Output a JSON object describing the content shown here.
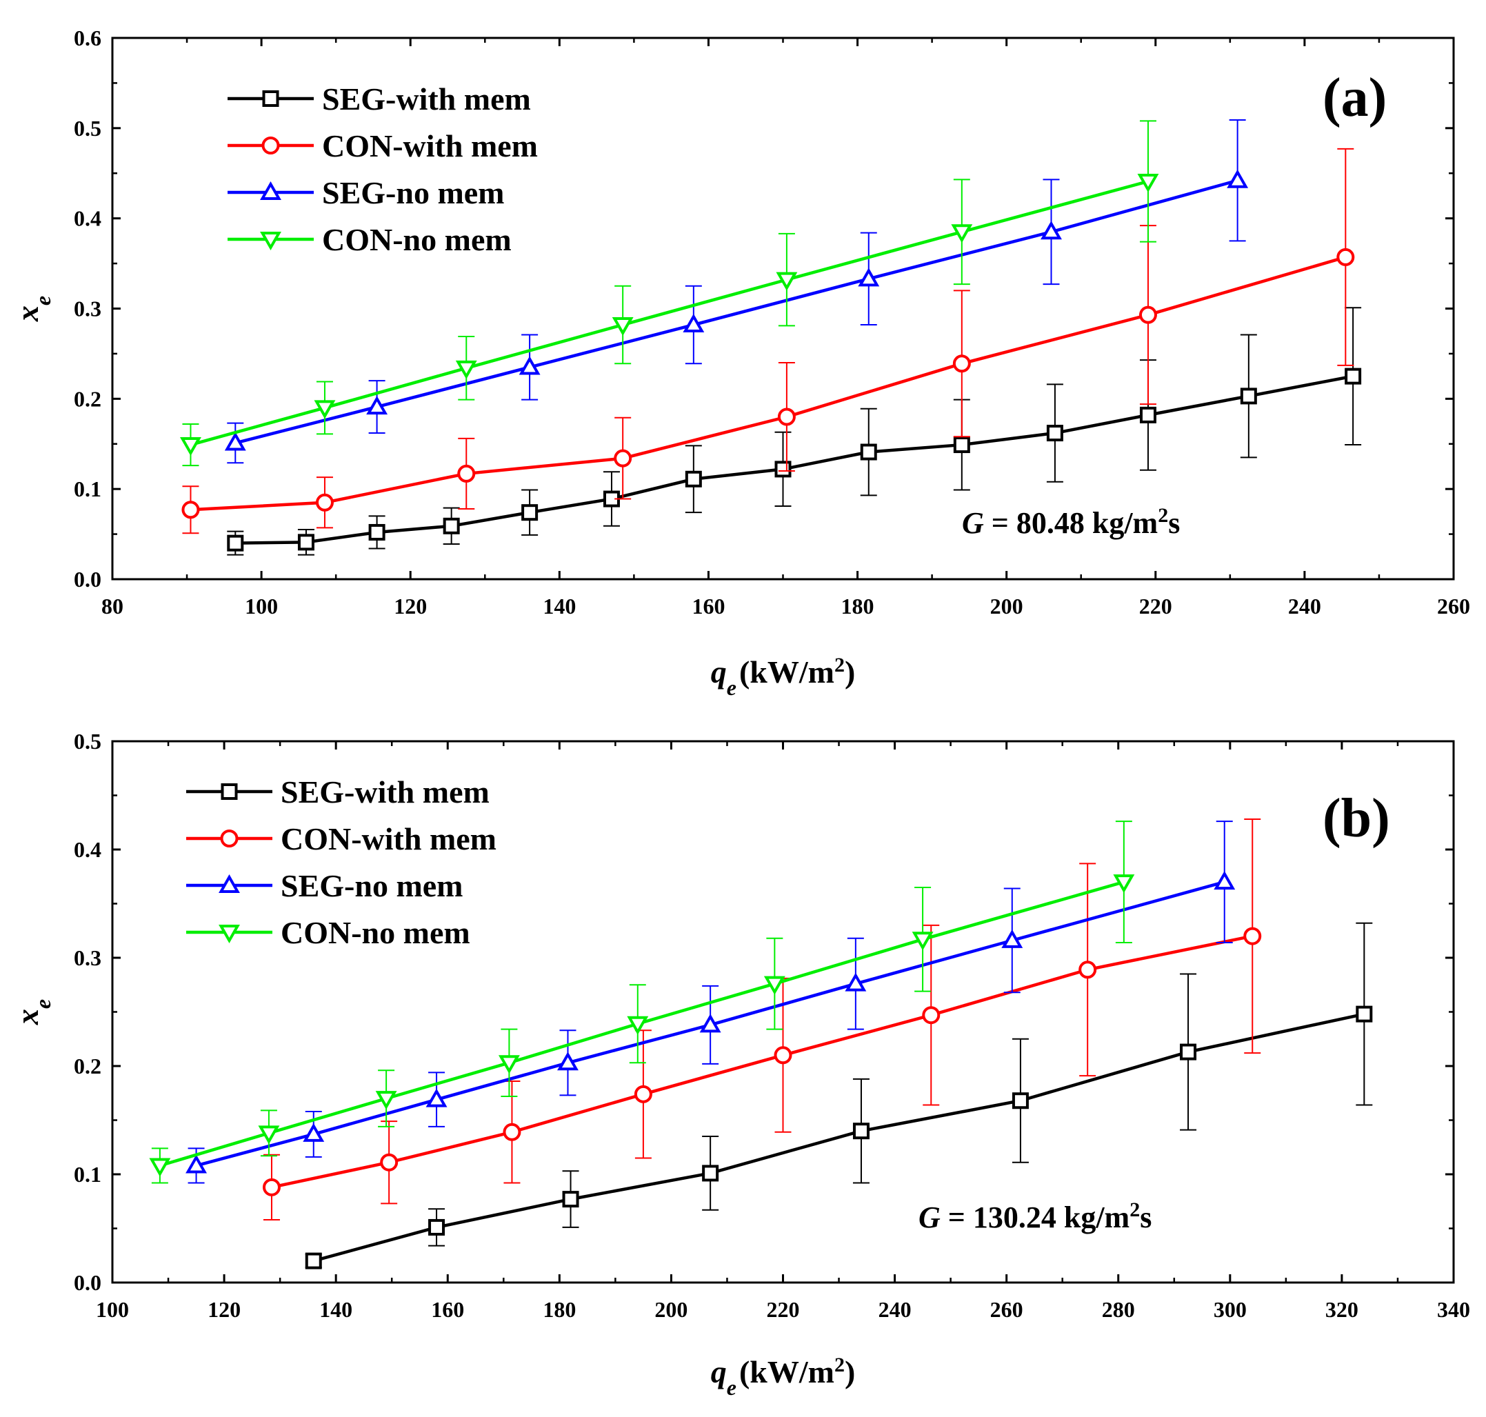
{
  "chart_data": [
    {
      "type": "line",
      "panel_label": "(a)",
      "xlabel": {
        "var": "q",
        "sub": "e",
        "unit": "(kW/m",
        "sup": "2",
        "close": ")"
      },
      "ylabel": {
        "var": "x",
        "sub": "e"
      },
      "xlim": [
        80,
        260
      ],
      "ylim": [
        0.0,
        0.6
      ],
      "xticks": [
        "80",
        "100",
        "120",
        "140",
        "160",
        "180",
        "200",
        "220",
        "240",
        "260"
      ],
      "yticks": [
        "0.0",
        "0.1",
        "0.2",
        "0.3",
        "0.4",
        "0.5",
        "0.6"
      ],
      "annotation": {
        "var": "G",
        "eq": " = 80.48 kg/m",
        "sup": "2",
        "tail": "s"
      },
      "legend_position": "top-left",
      "series": [
        {
          "name": "SEG-with mem",
          "color": "#000000",
          "marker": "square",
          "x": [
            96.5,
            106,
            115.5,
            125.5,
            136,
            147,
            158,
            170,
            181.5,
            194,
            206.5,
            219,
            232.5,
            246.5
          ],
          "y": [
            0.04,
            0.041,
            0.052,
            0.059,
            0.074,
            0.089,
            0.111,
            0.122,
            0.141,
            0.149,
            0.162,
            0.182,
            0.203,
            0.225
          ],
          "err": [
            0.013,
            0.014,
            0.018,
            0.02,
            0.025,
            0.03,
            0.037,
            0.041,
            0.048,
            0.05,
            0.054,
            0.061,
            0.068,
            0.076
          ]
        },
        {
          "name": "CON-with mem",
          "color": "#ff0000",
          "marker": "circle",
          "x": [
            90.5,
            108.5,
            127.5,
            148.5,
            170.5,
            194,
            219,
            245.5
          ],
          "y": [
            0.077,
            0.085,
            0.117,
            0.134,
            0.18,
            0.239,
            0.293,
            0.357
          ],
          "err": [
            0.026,
            0.028,
            0.039,
            0.045,
            0.06,
            0.081,
            0.099,
            0.12
          ]
        },
        {
          "name": "SEG-no mem",
          "color": "#0000ff",
          "marker": "triangle-up",
          "x": [
            96.5,
            115.5,
            136,
            158,
            181.5,
            206,
            231
          ],
          "y": [
            0.151,
            0.191,
            0.235,
            0.282,
            0.333,
            0.385,
            0.442
          ],
          "err": [
            0.022,
            0.029,
            0.036,
            0.043,
            0.051,
            0.058,
            0.067
          ]
        },
        {
          "name": "CON-no mem",
          "color": "#00ee00",
          "marker": "triangle-down",
          "x": [
            90.5,
            108.5,
            127.5,
            148.5,
            170.5,
            194,
            219
          ],
          "y": [
            0.149,
            0.19,
            0.234,
            0.282,
            0.332,
            0.385,
            0.441
          ],
          "err": [
            0.023,
            0.029,
            0.035,
            0.043,
            0.051,
            0.058,
            0.067
          ]
        }
      ]
    },
    {
      "type": "line",
      "panel_label": "(b)",
      "xlabel": {
        "var": "q",
        "sub": "e",
        "unit": "(kW/m",
        "sup": "2",
        "close": ")"
      },
      "ylabel": {
        "var": "x",
        "sub": "e"
      },
      "xlim": [
        100,
        340
      ],
      "ylim": [
        0.0,
        0.5
      ],
      "xticks": [
        "100",
        "120",
        "140",
        "160",
        "180",
        "200",
        "220",
        "240",
        "260",
        "280",
        "300",
        "320",
        "340"
      ],
      "yticks": [
        "0.0",
        "0.1",
        "0.2",
        "0.3",
        "0.4",
        "0.5"
      ],
      "annotation": {
        "var": "G",
        "eq": " = 130.24 kg/m",
        "sup": "2",
        "tail": "s"
      },
      "legend_position": "top-left",
      "series": [
        {
          "name": "SEG-with mem",
          "color": "#000000",
          "marker": "square",
          "x": [
            136,
            158,
            182,
            207,
            234,
            262.5,
            292.5,
            324
          ],
          "y": [
            0.02,
            0.051,
            0.077,
            0.101,
            0.14,
            0.168,
            0.213,
            0.248
          ],
          "err": [
            0.006,
            0.017,
            0.026,
            0.034,
            0.048,
            0.057,
            0.072,
            0.084
          ]
        },
        {
          "name": "CON-with mem",
          "color": "#ff0000",
          "marker": "circle",
          "x": [
            128.5,
            149.5,
            171.5,
            195,
            220,
            246.5,
            274.5,
            304
          ],
          "y": [
            0.088,
            0.111,
            0.139,
            0.174,
            0.21,
            0.247,
            0.289,
            0.32
          ],
          "err": [
            0.03,
            0.038,
            0.047,
            0.059,
            0.071,
            0.083,
            0.098,
            0.108
          ]
        },
        {
          "name": "SEG-no mem",
          "color": "#0000ff",
          "marker": "triangle-up",
          "x": [
            115,
            136,
            158,
            181.5,
            207,
            233,
            261,
            299
          ],
          "y": [
            0.108,
            0.137,
            0.169,
            0.203,
            0.238,
            0.276,
            0.316,
            0.37
          ],
          "err": [
            0.016,
            0.021,
            0.025,
            0.03,
            0.036,
            0.042,
            0.048,
            0.056
          ]
        },
        {
          "name": "CON-no mem",
          "color": "#00ee00",
          "marker": "triangle-down",
          "x": [
            108.5,
            128,
            149,
            171,
            194,
            218.5,
            245,
            281
          ],
          "y": [
            0.108,
            0.138,
            0.17,
            0.203,
            0.239,
            0.276,
            0.317,
            0.37
          ],
          "err": [
            0.016,
            0.021,
            0.026,
            0.031,
            0.036,
            0.042,
            0.048,
            0.056
          ]
        }
      ]
    }
  ]
}
